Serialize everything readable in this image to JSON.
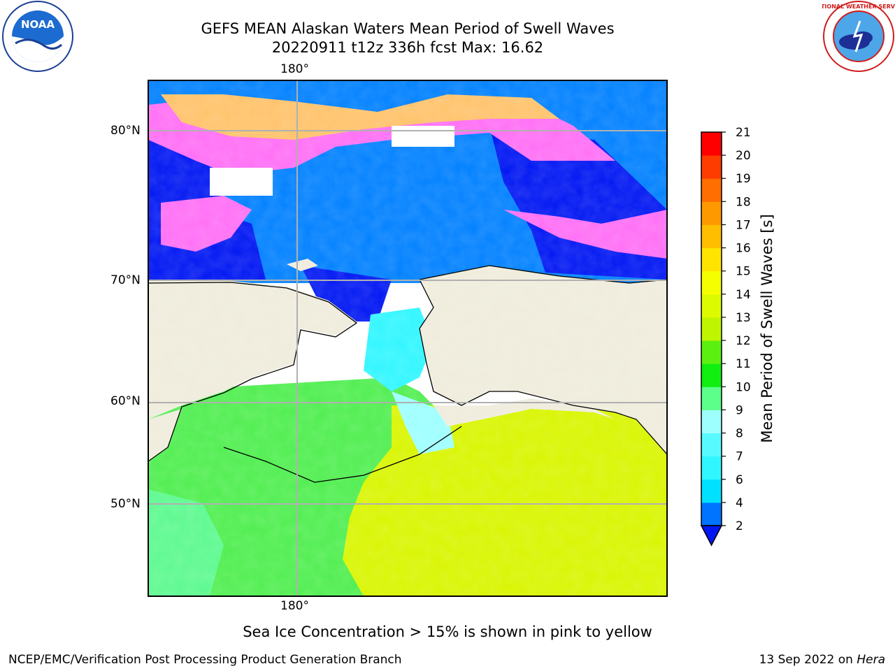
{
  "title": {
    "line1": "GEFS MEAN Alaskan Waters Mean Period of Swell Waves",
    "line2": "20220911 t12z 336h fcst   Max: 16.62"
  },
  "axes": {
    "lon_label_top": "180°",
    "lon_label_bottom": "180°",
    "lat_labels": [
      "80°N",
      "70°N",
      "60°N",
      "50°N"
    ]
  },
  "colorbar": {
    "title": "Mean Period of Swell Waves [s]",
    "levels": [
      "2",
      "4",
      "6",
      "7",
      "8",
      "9",
      "10",
      "11",
      "12",
      "13",
      "14",
      "15",
      "16",
      "17",
      "18",
      "19",
      "20",
      "21"
    ],
    "colors": [
      "#0073ff",
      "#00e1ff",
      "#30f6ff",
      "#57fbff",
      "#9effff",
      "#5cff8a",
      "#10ef10",
      "#5cf010",
      "#bff500",
      "#dcfa00",
      "#f6ff00",
      "#ffe400",
      "#ffbe00",
      "#ff9900",
      "#ff6e00",
      "#ff3c00",
      "#ff0000"
    ],
    "under_color": "#0016f2"
  },
  "colors": {
    "land": "#efecdc",
    "deep_blue": "#0016f2",
    "blue": "#0080ff",
    "ice_pink": "#ff6ef5",
    "ice_orange": "#ffc26a",
    "green": "#4fee4f",
    "yellow_green": "#d9f500"
  },
  "caption": "Sea Ice Concentration > 15% is shown in pink to yellow",
  "footer": {
    "left": "NCEP/EMC/Verification Post Processing Product Generation Branch",
    "right_date": "13 Sep 2022 on ",
    "right_host": "Hera"
  },
  "logos": {
    "noaa_text": "NOAA",
    "nws_text": "NATIONAL WEATHER SERVICE"
  }
}
